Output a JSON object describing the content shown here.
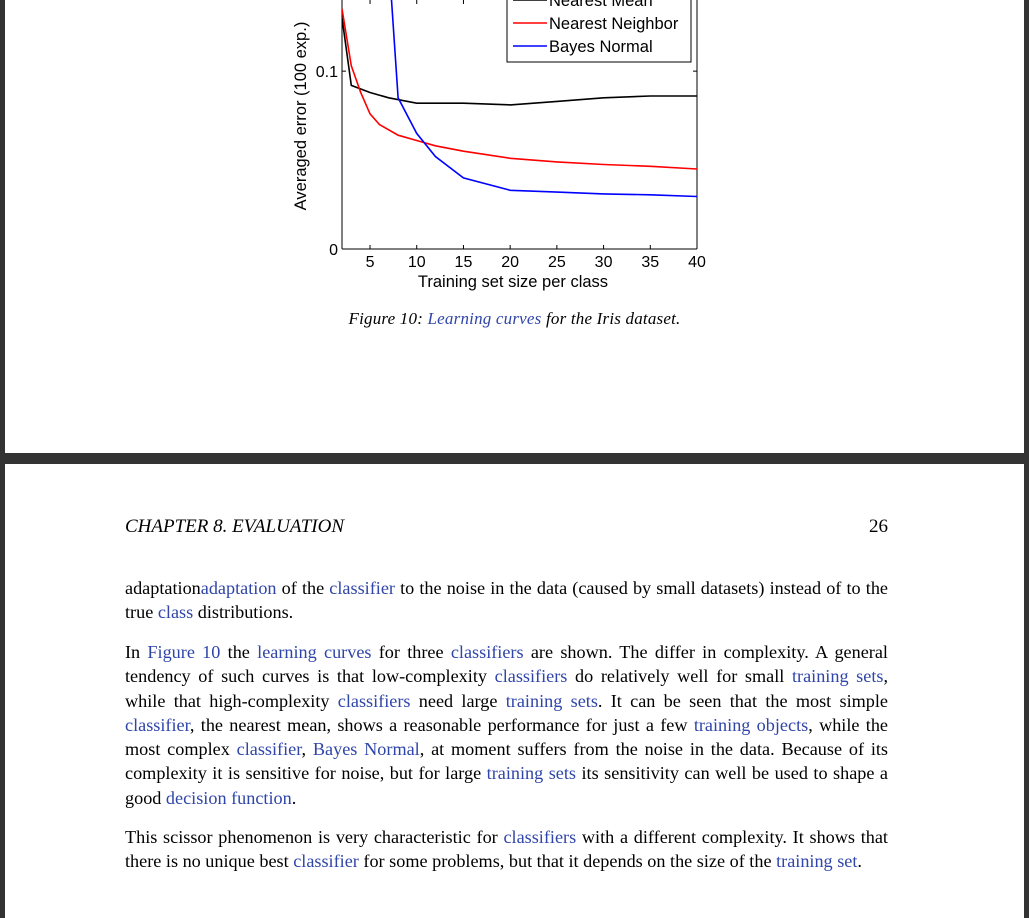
{
  "figure": {
    "number_label": "Figure 10:",
    "caption_link": "Learning curves",
    "caption_rest": "for the Iris dataset."
  },
  "chart_data": {
    "type": "line",
    "title": "",
    "xlabel": "Training set size per class",
    "ylabel": "Averaged error (100 exp.)",
    "xlim": [
      2,
      40
    ],
    "ylim": [
      0,
      0.14
    ],
    "x_ticks": [
      "5",
      "10",
      "15",
      "20",
      "25",
      "30",
      "35",
      "40"
    ],
    "y_ticks": [
      "0",
      "0.1"
    ],
    "legend_position": "top-right",
    "series": [
      {
        "name": "Nearest Mean",
        "color": "#000000",
        "x": [
          2,
          3,
          5,
          7,
          10,
          15,
          20,
          25,
          30,
          35,
          40
        ],
        "y": [
          0.13,
          0.092,
          0.088,
          0.085,
          0.082,
          0.082,
          0.081,
          0.083,
          0.085,
          0.086,
          0.086
        ]
      },
      {
        "name": "Nearest Neighbor",
        "color": "#ff0000",
        "x": [
          2,
          3,
          4,
          5,
          6,
          8,
          10,
          12,
          15,
          20,
          25,
          30,
          35,
          40
        ],
        "y": [
          0.135,
          0.103,
          0.088,
          0.076,
          0.07,
          0.064,
          0.061,
          0.058,
          0.055,
          0.051,
          0.049,
          0.0475,
          0.0465,
          0.045
        ]
      },
      {
        "name": "Bayes Normal",
        "color": "#0000ff",
        "x": [
          7.3,
          8,
          10,
          12,
          15,
          20,
          25,
          30,
          35,
          40
        ],
        "y": [
          0.14,
          0.085,
          0.065,
          0.052,
          0.04,
          0.033,
          0.032,
          0.031,
          0.0305,
          0.0295
        ]
      }
    ]
  },
  "header": {
    "chapter": "CHAPTER 8.  EVALUATION",
    "page_number": "26"
  },
  "body": {
    "p1": {
      "t1": "adaptation",
      "l1": "adaptation",
      "t2": " of the ",
      "l2": "classifier",
      "t3": " to the noise in the data (caused by small datasets) instead of to the true ",
      "l3": "class",
      "t4": " distributions."
    },
    "p2": {
      "t1": "In ",
      "l1": "Figure 10",
      "t2": " the ",
      "l2": "learning curves",
      "t3": " for three ",
      "l3": "classifiers",
      "t4": " are shown.  The differ in complexity.  A general tendency of such curves is that low-complexity ",
      "l4": "classifiers",
      "t5": " do relatively well for small ",
      "l5": "training sets",
      "t6": ", while that high-complexity ",
      "l6": "classifiers",
      "t7": " need large ",
      "l7": "training sets",
      "t8": ". It can be seen that the most simple ",
      "l8": "classifier",
      "t9": ", the nearest mean, shows a reasonable performance for just a few ",
      "l9": "training objects",
      "t10": ", while the most complex ",
      "l10": "classifier",
      "t11": ", ",
      "l11": "Bayes Normal",
      "t12": ", at moment suffers from the noise in the data. Because of its complexity it is sensitive for noise, but for large ",
      "l12": "training sets",
      "t13": " its sensitivity can well be used to shape a good ",
      "l13": "decision function",
      "t14": "."
    },
    "p3": {
      "t1": "This scissor phenomenon is very characteristic for ",
      "l1": "classifiers",
      "t2": " with a different complexity.  It shows that there is no unique best ",
      "l2": "classifier",
      "t3": " for some problems, but that it depends on the size of the ",
      "l3": "training set",
      "t4": "."
    }
  },
  "colors": {
    "link": "#2f45a8",
    "page_gap": "#333333"
  }
}
